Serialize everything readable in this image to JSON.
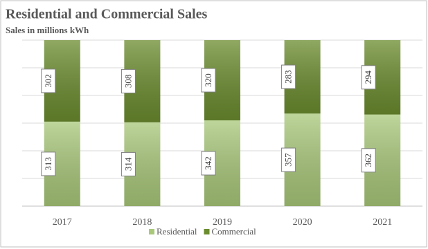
{
  "chart_data": {
    "type": "bar",
    "stacked": "percent",
    "title": "Residential and Commercial Sales",
    "subtitle": "Sales in millions kWh",
    "categories": [
      "2017",
      "2018",
      "2019",
      "2020",
      "2021"
    ],
    "series": [
      {
        "name": "Residential",
        "color": "#a9c87a",
        "values": [
          313,
          314,
          342,
          357,
          362
        ]
      },
      {
        "name": "Commercial",
        "color": "#6b8c2e",
        "values": [
          302,
          308,
          320,
          283,
          294
        ]
      }
    ],
    "grid": true
  }
}
